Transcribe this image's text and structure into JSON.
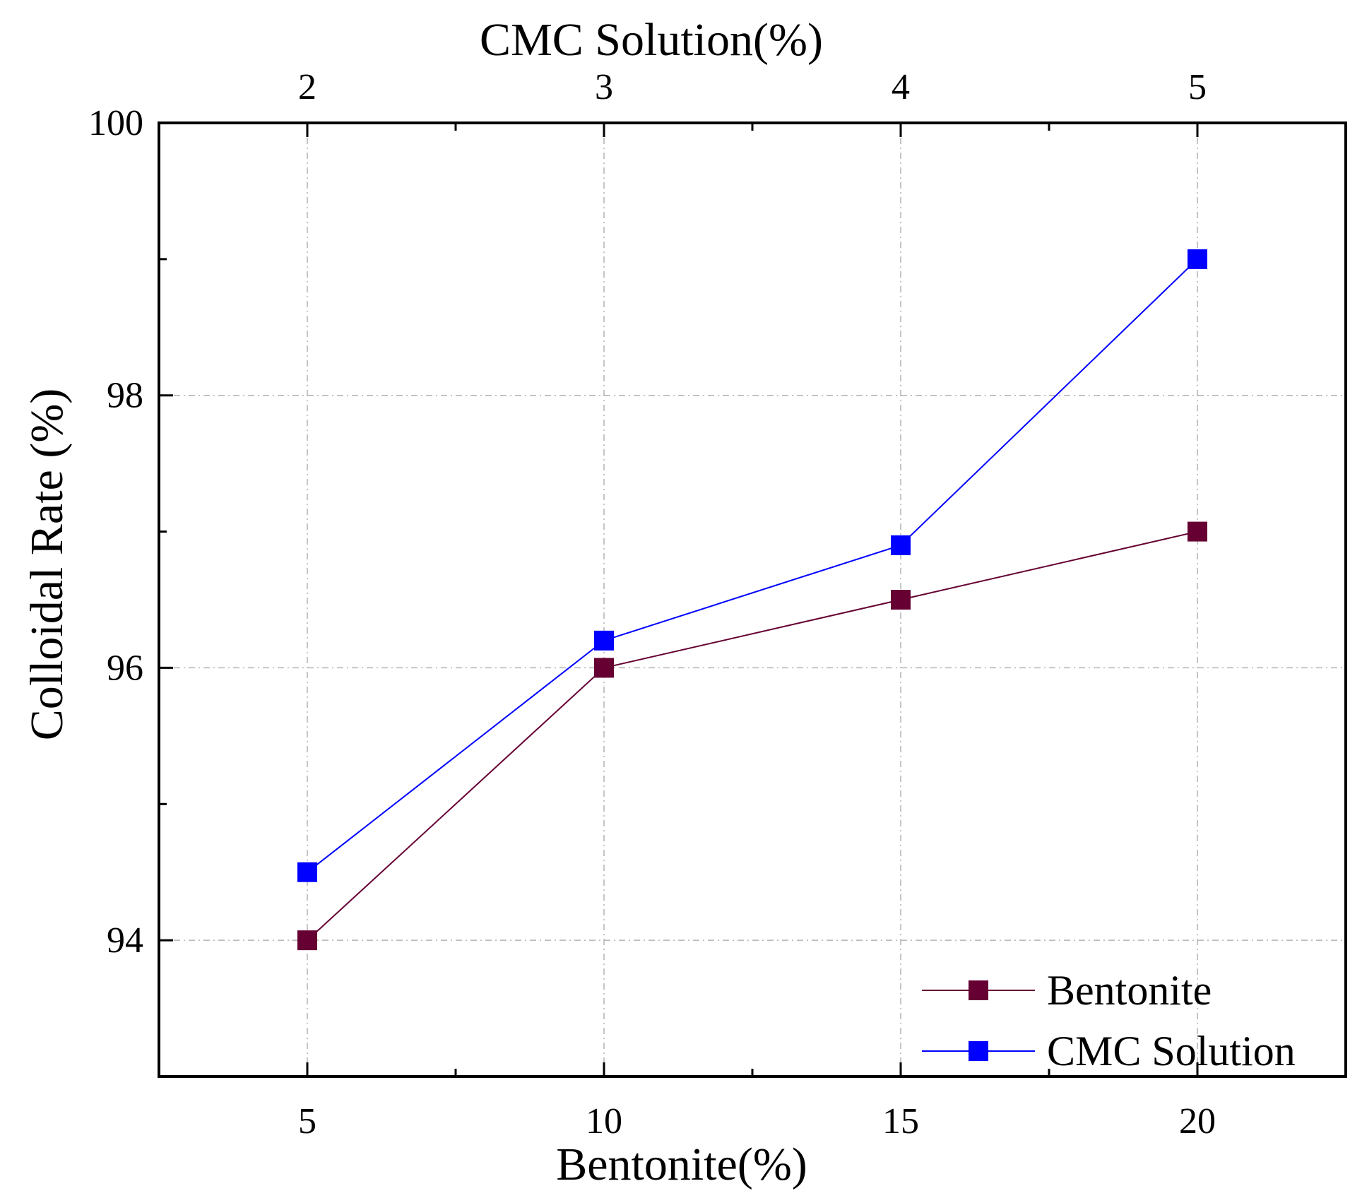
{
  "chart_data": {
    "type": "line",
    "title": "",
    "xlabel": "Bentonite(%)",
    "x2label": "CMC Solution(%)",
    "ylabel": "Colloidal Rate (%)",
    "x_ticks": [
      5,
      10,
      15,
      20
    ],
    "x2_ticks": [
      2,
      3,
      4,
      5
    ],
    "y_ticks": [
      94,
      96,
      98,
      100
    ],
    "xlim": [
      2.5,
      22.5
    ],
    "ylim": [
      93,
      100
    ],
    "grid": true,
    "legend_position": "bottom-right",
    "series": [
      {
        "name": "Bentonite",
        "axis": "bottom",
        "color": "#660033",
        "marker": "square",
        "x": [
          5,
          10,
          15,
          20
        ],
        "y": [
          94.0,
          96.0,
          96.5,
          97.0
        ]
      },
      {
        "name": "CMC Solution",
        "axis": "top",
        "color": "#0000ff",
        "marker": "square",
        "x": [
          2,
          3,
          4,
          5
        ],
        "y": [
          94.5,
          96.2,
          96.9,
          99.0
        ]
      }
    ]
  }
}
